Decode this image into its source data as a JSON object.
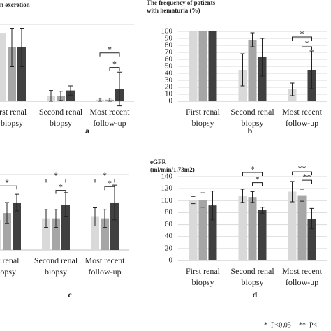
{
  "chart_data": [
    {
      "type": "bar",
      "title": [
        "n excretion"
      ],
      "panel_label": "a",
      "categories": [
        [
          "irst renal",
          "biopsy"
        ],
        [
          "Second renal",
          "biopsy"
        ],
        [
          "Most recent",
          "follow-up"
        ]
      ],
      "series": [
        {
          "color": "#d9d9d9",
          "values": [
            89,
            7,
            2
          ],
          "errors": [
            null,
            7,
            2
          ]
        },
        {
          "color": "#a6a6a6",
          "values": [
            70,
            7,
            2
          ],
          "errors": [
            25,
            6,
            2
          ]
        },
        {
          "color": "#404040",
          "values": [
            70,
            14,
            16
          ],
          "errors": [
            25,
            6,
            22
          ]
        }
      ],
      "annotations": [
        {
          "text": "*",
          "category": 2,
          "from": 0,
          "to": 2,
          "y": 63
        },
        {
          "text": "*",
          "category": 2,
          "from": 1,
          "to": 2,
          "y": 44
        }
      ],
      "ylim": [
        0,
        100
      ]
    },
    {
      "type": "bar",
      "title": [
        "The frequency of patients",
        "with hematuria (%)"
      ],
      "panel_label": "b",
      "categories": [
        [
          "First renal",
          "biopsy"
        ],
        [
          "Second renal",
          "biopsy"
        ],
        [
          "Most recent",
          "follow-up"
        ]
      ],
      "series": [
        {
          "color": "#d9d9d9",
          "values": [
            100,
            45,
            17
          ],
          "errors": [
            null,
            23,
            9
          ]
        },
        {
          "color": "#a6a6a6",
          "values": [
            100,
            88,
            0
          ],
          "errors": [
            null,
            10,
            null
          ]
        },
        {
          "color": "#404040",
          "values": [
            100,
            63,
            45
          ],
          "errors": [
            null,
            27,
            27
          ]
        }
      ],
      "annotations": [
        {
          "text": "*",
          "category": 2,
          "from": 0,
          "to": 2,
          "y": 92
        },
        {
          "text": "*",
          "category": 2,
          "from": 1,
          "to": 2,
          "y": 78
        }
      ],
      "ylim": [
        0,
        100
      ],
      "yticks": [
        0,
        10,
        20,
        30,
        40,
        50,
        60,
        70,
        80,
        90,
        100
      ],
      "grid": true
    },
    {
      "type": "bar",
      "panel_label": "c",
      "categories": [
        [
          "st renal",
          "iopsy"
        ],
        [
          "Second renal",
          "biopsy"
        ],
        [
          "Most recent",
          "follow-up"
        ]
      ],
      "series": [
        {
          "color": "#d9d9d9",
          "values": [
            40,
            42,
            44
          ],
          "errors": [
            12,
            12,
            12
          ]
        },
        {
          "color": "#a6a6a6",
          "values": [
            49,
            42,
            42
          ],
          "errors": [
            14,
            12,
            12
          ]
        },
        {
          "color": "#404040",
          "values": [
            63,
            60,
            63
          ],
          "errors": [
            11,
            16,
            23
          ]
        }
      ],
      "annotations": [
        {
          "text": "*",
          "category": 0,
          "from": 0,
          "to": 2,
          "y": 85
        },
        {
          "text": "*",
          "category": 1,
          "from": 0,
          "to": 2,
          "y": 94
        },
        {
          "text": "*",
          "category": 1,
          "from": 1,
          "to": 2,
          "y": 79
        },
        {
          "text": "*",
          "category": 2,
          "from": 0,
          "to": 2,
          "y": 94
        },
        {
          "text": "*",
          "category": 2,
          "from": 1,
          "to": 2,
          "y": 84
        }
      ],
      "ylim": [
        0,
        100
      ]
    },
    {
      "type": "bar",
      "title": [
        "eGFR",
        "(ml/min/1.73m2)"
      ],
      "panel_label": "d",
      "categories": [
        [
          "First renal",
          "biopsy"
        ],
        [
          "Second renal",
          "biopsy"
        ],
        [
          "Most recent",
          "follow-up"
        ]
      ],
      "series": [
        {
          "color": "#d9d9d9",
          "values": [
            101,
            108,
            115
          ],
          "errors": [
            6,
            11,
            17
          ]
        },
        {
          "color": "#a6a6a6",
          "values": [
            101,
            106,
            109
          ],
          "errors": [
            12,
            9,
            10
          ]
        },
        {
          "color": "#404040",
          "values": [
            92,
            84,
            70
          ],
          "errors": [
            24,
            5,
            17
          ]
        }
      ],
      "annotations": [
        {
          "text": "*",
          "category": 1,
          "from": 0,
          "to": 2,
          "y": 147
        },
        {
          "text": "*",
          "category": 1,
          "from": 1,
          "to": 2,
          "y": 130
        },
        {
          "text": "**",
          "category": 2,
          "from": 0,
          "to": 2,
          "y": 148
        },
        {
          "text": "**",
          "category": 2,
          "from": 1,
          "to": 2,
          "y": 134
        }
      ],
      "ylim": [
        0,
        140
      ],
      "yticks": [
        0,
        20,
        40,
        60,
        80,
        100,
        120,
        140
      ],
      "grid": true
    }
  ],
  "footnotes": [
    "*  P<0.05",
    "**  P<"
  ]
}
